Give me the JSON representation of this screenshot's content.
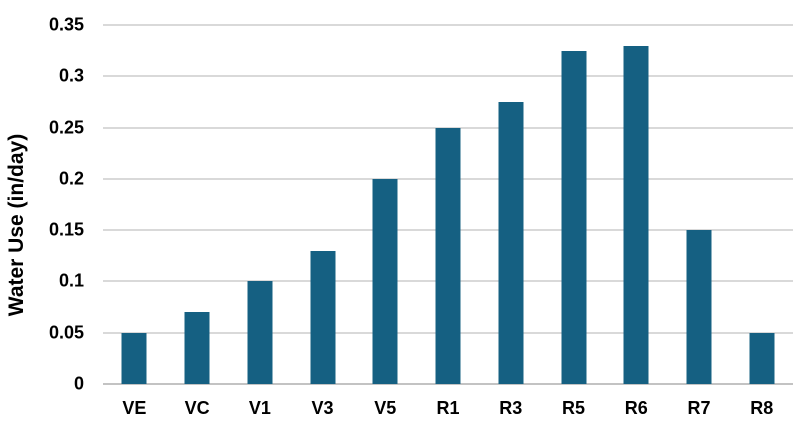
{
  "chart_data": {
    "type": "bar",
    "title": "",
    "xlabel": "",
    "ylabel": "Water Use (in/day)",
    "categories": [
      "VE",
      "VC",
      "V1",
      "V3",
      "V5",
      "R1",
      "R3",
      "R5",
      "R6",
      "R7",
      "R8"
    ],
    "values": [
      0.05,
      0.07,
      0.1,
      0.13,
      0.2,
      0.25,
      0.275,
      0.325,
      0.33,
      0.15,
      0.05
    ],
    "ylim": [
      0,
      0.35
    ],
    "ytick_interval": 0.05,
    "ytick_labels": [
      "0",
      "0.05",
      "0.1",
      "0.15",
      "0.2",
      "0.25",
      "0.3",
      "0.35"
    ],
    "grid": "horizontal",
    "legend": false,
    "colors": {
      "bar": "#156082",
      "gridline": "#D9D9D9",
      "axis_line": "#C3C3C3",
      "text": "#000000",
      "background": "#FFFFFF"
    }
  }
}
